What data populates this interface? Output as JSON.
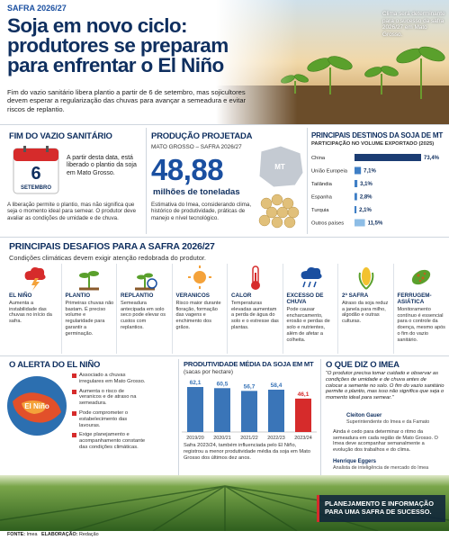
{
  "header": {
    "tag": "SAFRA 2026/27",
    "title_lines": [
      "Soja em novo ciclo:",
      "produtores se preparam",
      "para enfrentar o El Niño"
    ],
    "photo_caption": "Clima será determinante para o sucesso da safra 2026/27 em Mato Grosso.",
    "lead": "Fim do vazio sanitário libera plantio a partir de 6 de setembro, mas sojicultores devem esperar a regularização das chuvas para avançar a semeadura e evitar riscos de replantio."
  },
  "vazio": {
    "title": "FIM DO VAZIO SANITÁRIO",
    "day": "6",
    "month": "SETEMBRO",
    "text": "A partir desta data, está liberado o plantio da soja em Mato Grosso.",
    "note": "A liberação permite o plantio, mas não significa que seja o momento ideal para semear. O produtor deve avaliar as condições de umidade e de chuva."
  },
  "producao": {
    "title": "PRODUÇÃO PROJETADA",
    "subtitle": "MATO GROSSO – SAFRA 2026/27",
    "map_label": "MT",
    "value": "48,88",
    "unit": "milhões de toneladas",
    "note": "Estimativa do Imea, considerando clima, histórico de produtividade, práticas de manejo e nível tecnológico."
  },
  "desafios": {
    "title": "PRINCIPAIS DESAFIOS PARA A SAFRA 2026/27",
    "subtitle": "Condições climáticas devem exigir atenção redobrada do produtor.",
    "items": [
      {
        "title": "EL NIÑO",
        "text": "Aumenta a instabilidade das chuvas no início da safra."
      },
      {
        "title": "PLANTIO",
        "text": "Primeiras chuvas não bastam. É preciso volume e regularidade para garantir a germinação."
      },
      {
        "title": "REPLANTIO",
        "text": "Semeadura antecipada em solo seco pode elevar os custos com replantios."
      },
      {
        "title": "VERANICOS",
        "text": "Risco maior durante floração, formação das vagens e enchimento dos grãos."
      },
      {
        "title": "CALOR",
        "text": "Temperaturas elevadas aumentam a perda de água do solo e o estresse das plantas."
      },
      {
        "title": "EXCESSO DE CHUVA",
        "text": "Pode causar encharcamento, erosão e perdas de solo e nutrientes, além de afetar a colheita."
      },
      {
        "title": "2ª SAFRA",
        "text": "Atraso da soja reduz a janela para milho, algodão e outras culturas."
      },
      {
        "title": "FERRUGEM-ASIÁTICA",
        "text": "Monitoramento contínuo é essencial para o controle da doença, mesmo após o fim do vazio sanitário."
      }
    ]
  },
  "el_nino": {
    "title": "O ALERTA DO EL NIÑO",
    "globe_label": "El Niño",
    "bullets": [
      "Associado a chuvas irregulares em Mato Grosso.",
      "Aumenta o risco de veranicos e de atraso na semeadura.",
      "Pode comprometer o estabelecimento das lavouras.",
      "Exige planejamento e acompanhamento constante das condições climáticas."
    ]
  },
  "imea": {
    "title": "O QUE DIZ O IMEA",
    "quote": "“O produtor precisa tomar cuidado e observar as condições de umidade e de chuva antes de colocar a semente no solo. O fim do vazio sanitário permite o plantio, mas isso não significa que seja o momento ideal para semear.”",
    "quote_name": "Cleiton Gauer",
    "quote_role": "Superintendente do Imea e da Famato",
    "statement": "Ainda é cedo para determinar o ritmo da semeadura em cada região de Mato Grosso. O Imea deve acompanhar semanalmente a evolução dos trabalhos e do clima.",
    "statement_name": "Henrique Eggers",
    "statement_role": "Analista de inteligência de mercado do Imea"
  },
  "banner": "PLANEJAMENTO E INFORMAÇÃO PARA UMA SAFRA DE SUCESSO.",
  "footer": {
    "source_label": "FONTE:",
    "source": "Imea",
    "credit_label": "ELABORAÇÃO:",
    "credit": "Redação"
  },
  "chart_data": [
    {
      "type": "hbar",
      "title": "PRINCIPAIS DESTINOS DA SOJA DE MT",
      "subtitle": "PARTICIPAÇÃO NO VOLUME EXPORTADO (2025)",
      "categories": [
        "China",
        "União Europeia",
        "Tailândia",
        "Espanha",
        "Turquia",
        "Outros países"
      ],
      "values": [
        73.4,
        7.1,
        3.1,
        2.8,
        2.1,
        11.5
      ],
      "value_labels": [
        "73,4%",
        "7,1%",
        "3,1%",
        "2,8%",
        "2,1%",
        "11,5%"
      ],
      "colors": [
        "#1b3c73",
        "#3f7fc6",
        "#3f7fc6",
        "#3f7fc6",
        "#3f7fc6",
        "#8dbde6"
      ]
    },
    {
      "type": "bar",
      "title": "PRODUTIVIDADE MÉDIA DA SOJA EM MT",
      "subtitle": "(sacas por hectare)",
      "categories": [
        "2019/20",
        "2020/21",
        "2021/22",
        "2022/23",
        "2023/24"
      ],
      "values": [
        62.1,
        60.5,
        56.7,
        58.4,
        46.1
      ],
      "value_labels": [
        "62,1",
        "60,5",
        "56,7",
        "58,4",
        "46,1"
      ],
      "colors": [
        "#3a75b8",
        "#3a75b8",
        "#3a75b8",
        "#3a75b8",
        "#d62b2b"
      ],
      "note": "Safra 2023/24, também influenciada pelo El Niño, registrou a menor produtividade média da soja em Mato Grosso dos últimos dez anos."
    }
  ]
}
